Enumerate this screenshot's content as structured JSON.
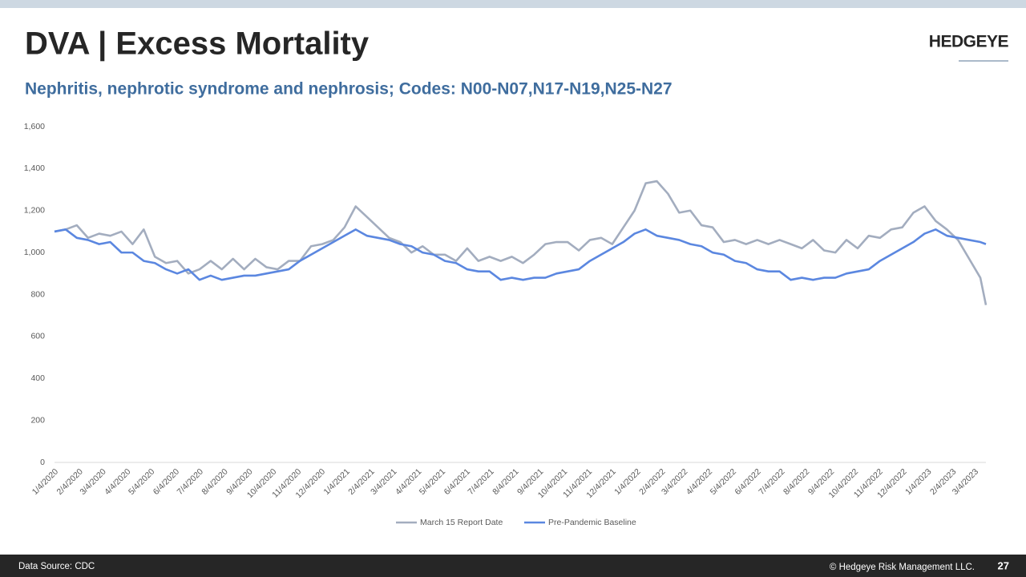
{
  "header": {
    "title": "DVA | Excess Mortality",
    "logo": "HEDGEYE"
  },
  "footer": {
    "source": "Data Source: CDC",
    "copyright": "© Hedgeye Risk Management LLC.",
    "page": 27
  },
  "chart_data": {
    "type": "line",
    "title": "Nephritis, nephrotic syndrome and nephrosis;  Codes: N00-N07,N17-N19,N25-N27",
    "x": [
      "1/4/2020",
      "1/18/2020",
      "2/1/2020",
      "2/15/2020",
      "2/29/2020",
      "3/14/2020",
      "3/28/2020",
      "4/11/2020",
      "4/25/2020",
      "5/9/2020",
      "5/23/2020",
      "6/6/2020",
      "6/20/2020",
      "7/4/2020",
      "7/18/2020",
      "8/1/2020",
      "8/15/2020",
      "8/29/2020",
      "9/12/2020",
      "9/26/2020",
      "10/10/2020",
      "10/24/2020",
      "11/7/2020",
      "11/21/2020",
      "12/5/2020",
      "12/19/2020",
      "1/2/2021",
      "1/16/2021",
      "1/30/2021",
      "2/13/2021",
      "2/27/2021",
      "3/13/2021",
      "3/27/2021",
      "4/10/2021",
      "4/24/2021",
      "5/8/2021",
      "5/22/2021",
      "6/5/2021",
      "6/19/2021",
      "7/3/2021",
      "7/17/2021",
      "7/31/2021",
      "8/14/2021",
      "8/28/2021",
      "9/11/2021",
      "9/25/2021",
      "10/9/2021",
      "10/23/2021",
      "11/6/2021",
      "11/20/2021",
      "12/4/2021",
      "12/18/2021",
      "1/1/2022",
      "1/15/2022",
      "1/29/2022",
      "2/12/2022",
      "2/26/2022",
      "3/12/2022",
      "3/26/2022",
      "4/9/2022",
      "4/23/2022",
      "5/7/2022",
      "5/21/2022",
      "6/4/2022",
      "6/18/2022",
      "7/2/2022",
      "7/16/2022",
      "7/30/2022",
      "8/13/2022",
      "8/27/2022",
      "9/10/2022",
      "9/24/2022",
      "10/8/2022",
      "10/22/2022",
      "11/5/2022",
      "11/19/2022",
      "12/3/2022",
      "12/17/2022",
      "12/31/2022",
      "1/14/2023",
      "1/28/2023",
      "2/11/2023",
      "2/25/2023",
      "3/11/2023",
      "3/18/2023"
    ],
    "series": [
      {
        "name": "March 15 Report Date",
        "color": "#a3adbf",
        "values": [
          1100,
          1110,
          1130,
          1070,
          1090,
          1080,
          1100,
          1040,
          1110,
          980,
          950,
          960,
          900,
          920,
          960,
          920,
          970,
          920,
          970,
          930,
          920,
          960,
          960,
          1030,
          1040,
          1060,
          1120,
          1220,
          1170,
          1120,
          1070,
          1050,
          1000,
          1030,
          990,
          990,
          960,
          1020,
          960,
          980,
          960,
          980,
          950,
          990,
          1040,
          1050,
          1050,
          1010,
          1060,
          1070,
          1040,
          1120,
          1200,
          1330,
          1340,
          1280,
          1190,
          1200,
          1130,
          1120,
          1050,
          1060,
          1040,
          1060,
          1040,
          1060,
          1040,
          1020,
          1060,
          1010,
          1000,
          1060,
          1020,
          1080,
          1070,
          1110,
          1120,
          1190,
          1220,
          1150,
          1110,
          1060,
          970,
          880,
          750
        ]
      },
      {
        "name": "Pre-Pandemic Baseline",
        "color": "#5b87e0",
        "values": [
          1100,
          1110,
          1070,
          1060,
          1040,
          1050,
          1000,
          1000,
          960,
          950,
          920,
          900,
          920,
          870,
          890,
          870,
          880,
          890,
          890,
          900,
          910,
          920,
          960,
          990,
          1020,
          1050,
          1080,
          1110,
          1080,
          1070,
          1060,
          1040,
          1030,
          1000,
          990,
          960,
          950,
          920,
          910,
          910,
          870,
          880,
          870,
          880,
          880,
          900,
          910,
          920,
          960,
          990,
          1020,
          1050,
          1090,
          1110,
          1080,
          1070,
          1060,
          1040,
          1030,
          1000,
          990,
          960,
          950,
          920,
          910,
          910,
          870,
          880,
          870,
          880,
          880,
          900,
          910,
          920,
          960,
          990,
          1020,
          1050,
          1090,
          1110,
          1080,
          1070,
          1060,
          1050,
          1040
        ]
      }
    ],
    "xlim": [
      "1/4/2020",
      "3/18/2023"
    ],
    "xticks": [
      "1/4/2020",
      "2/4/2020",
      "3/4/2020",
      "4/4/2020",
      "5/4/2020",
      "6/4/2020",
      "7/4/2020",
      "8/4/2020",
      "9/4/2020",
      "10/4/2020",
      "11/4/2020",
      "12/4/2020",
      "1/4/2021",
      "2/4/2021",
      "3/4/2021",
      "4/4/2021",
      "5/4/2021",
      "6/4/2021",
      "7/4/2021",
      "8/4/2021",
      "9/4/2021",
      "10/4/2021",
      "11/4/2021",
      "12/4/2021",
      "1/4/2022",
      "2/4/2022",
      "3/4/2022",
      "4/4/2022",
      "5/4/2022",
      "6/4/2022",
      "7/4/2022",
      "8/4/2022",
      "9/4/2022",
      "10/4/2022",
      "11/4/2022",
      "12/4/2022",
      "1/4/2023",
      "2/4/2023",
      "3/4/2023"
    ],
    "ylim": [
      0,
      1600
    ],
    "yticks": [
      0,
      200,
      400,
      600,
      800,
      {
        "value": 1000,
        "label": "1,000"
      },
      {
        "value": 1200,
        "label": "1,200"
      },
      {
        "value": 1400,
        "label": "1,400"
      },
      {
        "value": 1600,
        "label": "1,600"
      }
    ],
    "grid": false,
    "legend": "bottom"
  }
}
